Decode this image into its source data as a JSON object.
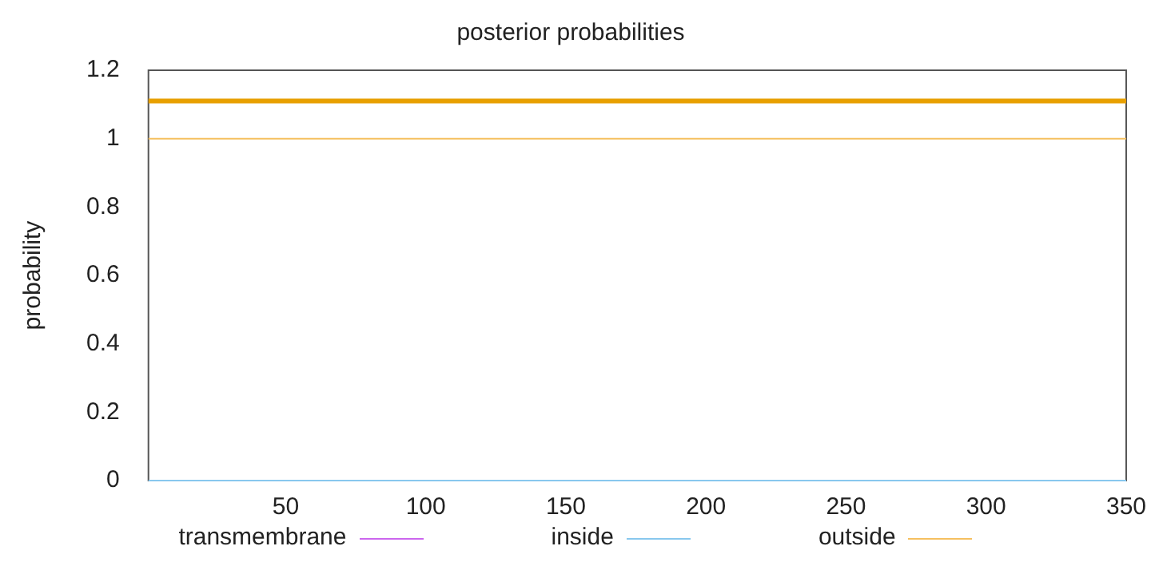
{
  "chart_data": {
    "type": "line",
    "title": "posterior probabilities",
    "ylabel": "probability",
    "x": [
      1,
      350
    ],
    "series": [
      {
        "name": "transmembrane",
        "color": "#cc66ee",
        "values": [
          null,
          null
        ]
      },
      {
        "name": "inside",
        "color": "#88c8ee",
        "values": [
          0,
          0
        ]
      },
      {
        "name": "outside",
        "color": "#f5c060",
        "values": [
          1,
          1
        ]
      },
      {
        "color": "#e8a000",
        "values": [
          1.11,
          1.11
        ]
      }
    ],
    "xlim": [
      1,
      350
    ],
    "xticks": [
      50,
      100,
      150,
      200,
      250,
      300,
      350
    ],
    "ylim": [
      0,
      1.2
    ],
    "yticks": [
      0,
      0.2,
      0.4,
      0.6,
      0.8,
      1,
      1.2
    ],
    "grid": false,
    "legend": "bottom",
    "marker": "none",
    "line_style": "solid"
  }
}
